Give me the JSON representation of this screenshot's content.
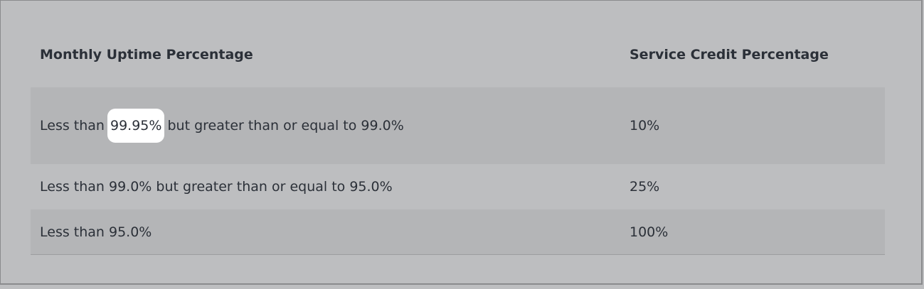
{
  "table": {
    "headers": [
      "Monthly Uptime Percentage",
      "Service Credit Percentage"
    ],
    "rows": [
      {
        "uptime_prefix": "Less than ",
        "uptime_highlight": "99.95%",
        "uptime_suffix": " but greater than or equal to 99.0%",
        "credit": "10%"
      },
      {
        "uptime": "Less than 99.0% but greater than or equal to 95.0%",
        "credit": "25%"
      },
      {
        "uptime": "Less than 95.0%",
        "credit": "100%"
      }
    ]
  },
  "colors": {
    "background": "#bdbec0",
    "stripe": "#b4b5b7",
    "highlight": "#ffffff",
    "text": "#2b3038"
  }
}
